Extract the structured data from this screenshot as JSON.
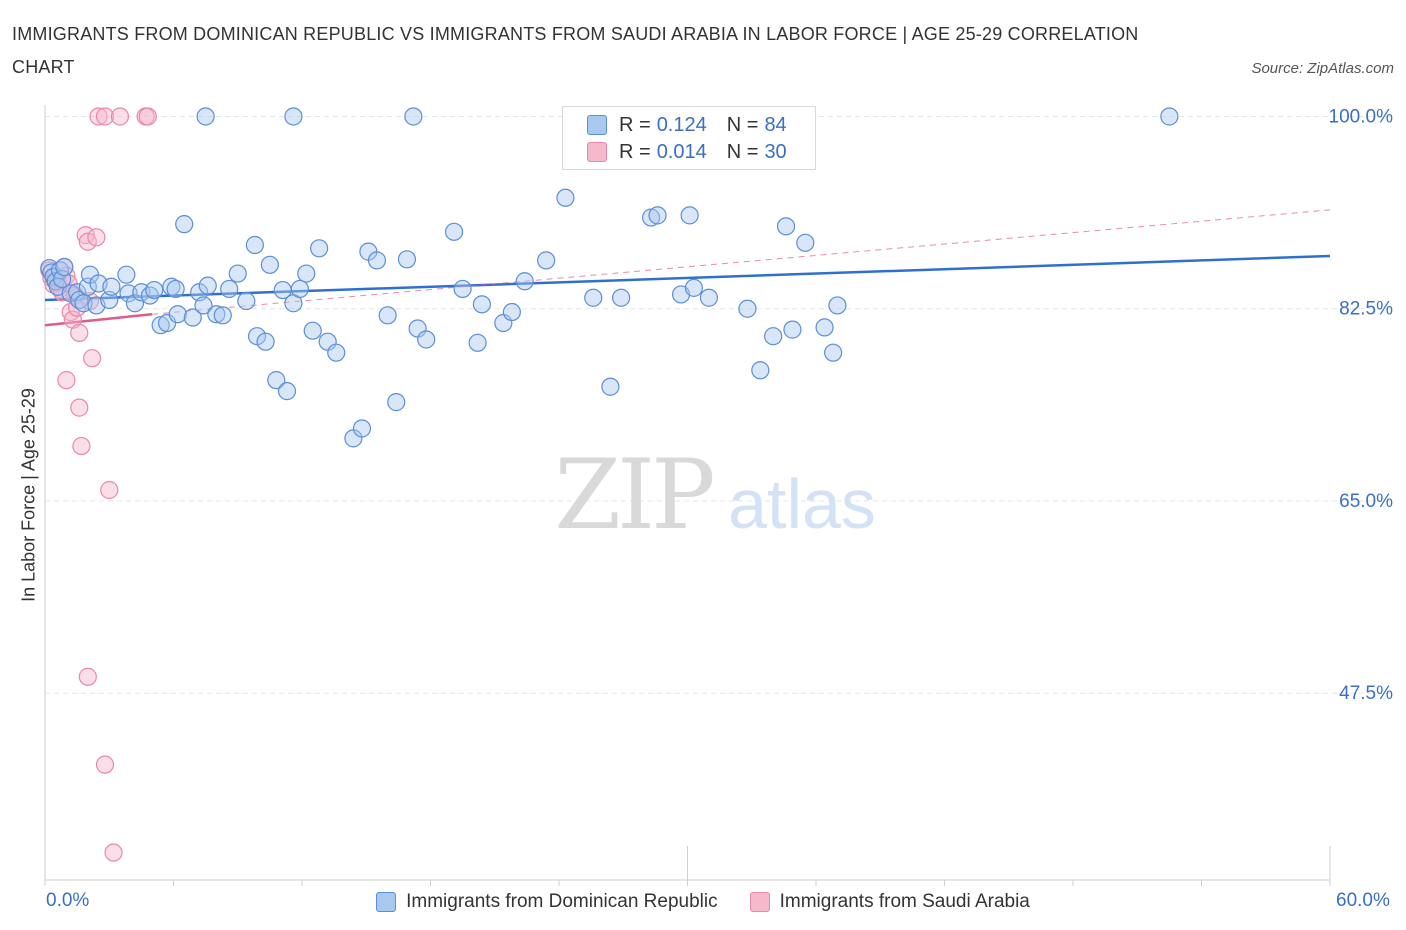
{
  "title": "IMMIGRANTS FROM DOMINICAN REPUBLIC VS IMMIGRANTS FROM SAUDI ARABIA IN LABOR FORCE | AGE 25-29 CORRELATION CHART",
  "source": "Source: ZipAtlas.com",
  "watermark": {
    "zip": "ZIP",
    "atlas": "atlas"
  },
  "legend_top": {
    "rows": [
      {
        "r_label": "R =",
        "r_value": "0.124",
        "n_label": "N =",
        "n_value": "84"
      },
      {
        "r_label": "R =",
        "r_value": "0.014",
        "n_label": "N =",
        "n_value": "30"
      }
    ]
  },
  "colors": {
    "blue_fill": "#a9c8f0",
    "blue_stroke": "#5b8fd6",
    "blue_line": "#2f6fd0",
    "pink_fill": "#f6b9cc",
    "pink_stroke": "#e889a8",
    "pink_line": "#e05a8a",
    "axis_text": "#3a6fc4",
    "grid": "#e6e6e6"
  },
  "chart_data": {
    "type": "scatter",
    "title": "IMMIGRANTS FROM DOMINICAN REPUBLIC VS IMMIGRANTS FROM SAUDI ARABIA IN LABOR FORCE | AGE 25-29 CORRELATION CHART",
    "xlabel": "",
    "ylabel": "In Labor Force | Age 25-29",
    "xlim": [
      0,
      60
    ],
    "ylim": [
      30.5,
      101.5
    ],
    "x_tick_labels": [
      "0.0%",
      "60.0%"
    ],
    "y_ticks": [
      100.0,
      82.5,
      65.0,
      47.5
    ],
    "y_tick_labels": [
      "100.0%",
      "82.5%",
      "65.0%",
      "47.5%"
    ],
    "grid": true,
    "legend_position": "bottom",
    "series": [
      {
        "name": "Immigrants from Dominican Republic",
        "color": "blue",
        "r": 0.124,
        "n": 84,
        "trend": {
          "x": [
            0,
            60
          ],
          "y": [
            83.3,
            87.3
          ]
        },
        "points": [
          [
            0.2,
            86.2
          ],
          [
            0.3,
            85.8
          ],
          [
            0.4,
            85.4
          ],
          [
            0.5,
            85.0
          ],
          [
            0.6,
            84.5
          ],
          [
            0.7,
            86.0
          ],
          [
            0.8,
            85.2
          ],
          [
            0.9,
            86.3
          ],
          [
            1.2,
            83.9
          ],
          [
            1.5,
            84.0
          ],
          [
            1.6,
            83.3
          ],
          [
            1.8,
            83.0
          ],
          [
            2.0,
            84.5
          ],
          [
            2.1,
            85.6
          ],
          [
            2.4,
            82.8
          ],
          [
            2.5,
            84.8
          ],
          [
            3.0,
            83.3
          ],
          [
            3.1,
            84.5
          ],
          [
            3.8,
            85.6
          ],
          [
            3.9,
            83.9
          ],
          [
            4.2,
            83.0
          ],
          [
            4.5,
            84.0
          ],
          [
            4.9,
            83.7
          ],
          [
            5.1,
            84.2
          ],
          [
            5.4,
            81.0
          ],
          [
            5.7,
            81.2
          ],
          [
            5.9,
            84.5
          ],
          [
            6.1,
            84.3
          ],
          [
            6.2,
            82.0
          ],
          [
            6.5,
            90.2
          ],
          [
            6.9,
            81.7
          ],
          [
            7.2,
            84.0
          ],
          [
            7.4,
            82.8
          ],
          [
            7.6,
            84.6
          ],
          [
            8.0,
            82.0
          ],
          [
            8.3,
            81.9
          ],
          [
            8.6,
            84.3
          ],
          [
            9.0,
            85.7
          ],
          [
            9.4,
            83.2
          ],
          [
            9.8,
            88.3
          ],
          [
            9.9,
            80.0
          ],
          [
            10.3,
            79.5
          ],
          [
            10.5,
            86.5
          ],
          [
            10.8,
            76.0
          ],
          [
            11.1,
            84.2
          ],
          [
            11.3,
            75.0
          ],
          [
            11.6,
            83.0
          ],
          [
            11.9,
            84.3
          ],
          [
            12.2,
            85.7
          ],
          [
            12.5,
            80.5
          ],
          [
            12.8,
            88.0
          ],
          [
            13.2,
            79.5
          ],
          [
            13.6,
            78.5
          ],
          [
            14.4,
            70.7
          ],
          [
            14.8,
            71.6
          ],
          [
            15.1,
            87.7
          ],
          [
            15.5,
            86.9
          ],
          [
            16.0,
            81.9
          ],
          [
            16.4,
            74.0
          ],
          [
            16.9,
            87.0
          ],
          [
            17.4,
            80.7
          ],
          [
            17.8,
            79.7
          ],
          [
            19.1,
            89.5
          ],
          [
            19.5,
            84.3
          ],
          [
            20.2,
            79.4
          ],
          [
            20.4,
            82.9
          ],
          [
            21.4,
            81.2
          ],
          [
            21.8,
            82.2
          ],
          [
            22.4,
            85.0
          ],
          [
            23.4,
            86.9
          ],
          [
            24.3,
            92.6
          ],
          [
            25.6,
            83.5
          ],
          [
            26.4,
            75.4
          ],
          [
            26.9,
            83.5
          ],
          [
            28.3,
            90.8
          ],
          [
            28.6,
            91.0
          ],
          [
            29.7,
            83.8
          ],
          [
            30.1,
            91.0
          ],
          [
            30.3,
            84.4
          ],
          [
            31.0,
            83.5
          ],
          [
            33.4,
            76.9
          ],
          [
            34.0,
            80.0
          ],
          [
            34.6,
            90.0
          ],
          [
            34.9,
            80.6
          ]
        ]
      },
      {
        "name": "Immigrants from Saudi Arabia",
        "color": "pink",
        "r": 0.014,
        "n": 30,
        "trend": {
          "x": [
            0,
            5
          ],
          "y": [
            81.0,
            82.0
          ]
        },
        "points": [
          [
            0.2,
            86.0
          ],
          [
            0.3,
            85.3
          ],
          [
            0.4,
            84.7
          ],
          [
            0.5,
            85.0
          ],
          [
            0.6,
            84.9
          ],
          [
            0.7,
            84.3
          ],
          [
            0.8,
            84.0
          ],
          [
            0.9,
            86.3
          ],
          [
            1.0,
            85.5
          ],
          [
            1.1,
            84.8
          ],
          [
            1.2,
            82.2
          ],
          [
            1.3,
            81.5
          ],
          [
            1.4,
            83.7
          ],
          [
            1.5,
            82.6
          ],
          [
            1.6,
            80.3
          ],
          [
            1.9,
            89.2
          ],
          [
            2.0,
            88.6
          ],
          [
            2.1,
            83.2
          ],
          [
            2.2,
            78.0
          ],
          [
            2.4,
            89.0
          ],
          [
            1.0,
            76.0
          ],
          [
            1.6,
            73.5
          ],
          [
            1.7,
            70.0
          ],
          [
            3.0,
            66.0
          ],
          [
            2.0,
            49.0
          ],
          [
            2.8,
            41.0
          ],
          [
            3.2,
            33.0
          ],
          [
            2.5,
            100.0
          ],
          [
            2.8,
            100.0
          ],
          [
            3.5,
            100.0
          ]
        ]
      }
    ],
    "extra_top_blue_points": [
      [
        7.5,
        100.0
      ],
      [
        11.6,
        100.0
      ],
      [
        17.2,
        100.0
      ],
      [
        52.5,
        100.0
      ]
    ],
    "extra_top_pink_points": [
      [
        4.7,
        100.0
      ],
      [
        4.8,
        100.0
      ]
    ],
    "extra_blue_points": [
      [
        35.5,
        88.5
      ],
      [
        32.8,
        82.5
      ],
      [
        37.0,
        82.8
      ],
      [
        36.4,
        80.8
      ],
      [
        36.8,
        78.5
      ]
    ]
  },
  "bottom_legend": {
    "items": [
      {
        "label": "Immigrants from Dominican Republic"
      },
      {
        "label": "Immigrants from Saudi Arabia"
      }
    ]
  }
}
